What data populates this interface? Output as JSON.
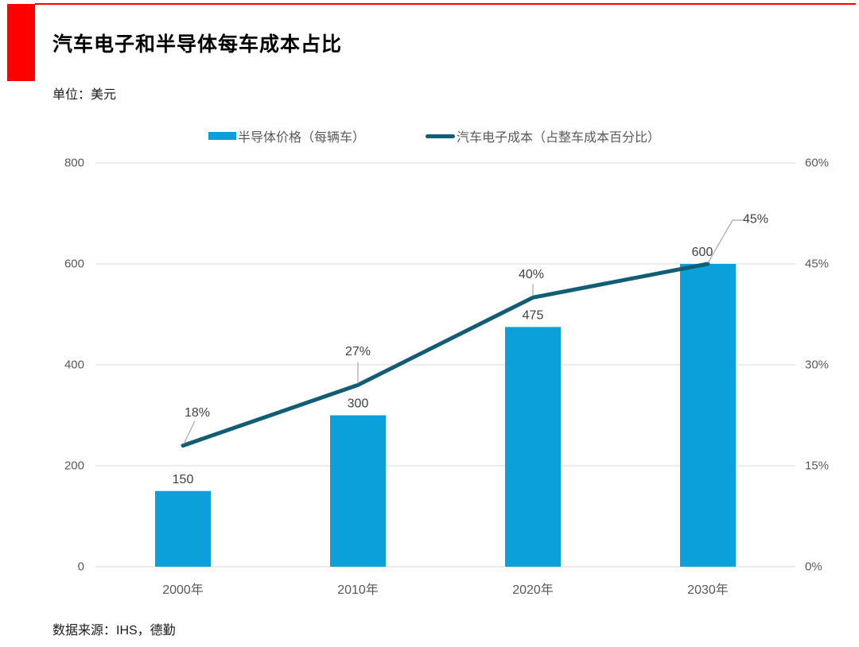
{
  "page": {
    "title": "汽车电子和半导体每车成本占比",
    "unit_label": "单位：美元",
    "source": "数据来源：IHS，德勤"
  },
  "colors": {
    "accent_red": "#FF0000",
    "bar_blue": "#0CA0DB",
    "line_teal": "#115E74",
    "grid": "#D9D9D9",
    "tick_text": "#595959",
    "label_text": "#404040",
    "leader": "#A6A6A6"
  },
  "chart_data": {
    "type": "combo",
    "title": "汽车电子和半导体每车成本占比",
    "subtitle_unit": "单位：美元",
    "categories": [
      "2000年",
      "2010年",
      "2020年",
      "2030年"
    ],
    "series": [
      {
        "name": "半导体价格（每辆车）",
        "type": "bar",
        "axis": "left",
        "values": [
          150,
          300,
          475,
          600
        ],
        "labels": [
          "150",
          "300",
          "475",
          "600"
        ],
        "color": "#0CA0DB"
      },
      {
        "name": "汽车电子成本（占整车成本百分比）",
        "type": "line",
        "axis": "right",
        "values": [
          18,
          27,
          40,
          45
        ],
        "labels": [
          "18%",
          "27%",
          "40%",
          "45%"
        ],
        "color": "#115E74"
      }
    ],
    "left_axis": {
      "range": [
        0,
        800
      ],
      "ticks": [
        800,
        600,
        400,
        200,
        0
      ],
      "tick_labels": [
        "800",
        "600",
        "400",
        "200",
        "0"
      ]
    },
    "right_axis": {
      "range": [
        0,
        60
      ],
      "ticks": [
        60,
        45,
        30,
        15,
        0
      ],
      "tick_labels": [
        "60%",
        "45%",
        "30%",
        "15%",
        "0%"
      ]
    },
    "grid": true,
    "legend_position": "top",
    "source": "数据来源：IHS，德勤"
  }
}
